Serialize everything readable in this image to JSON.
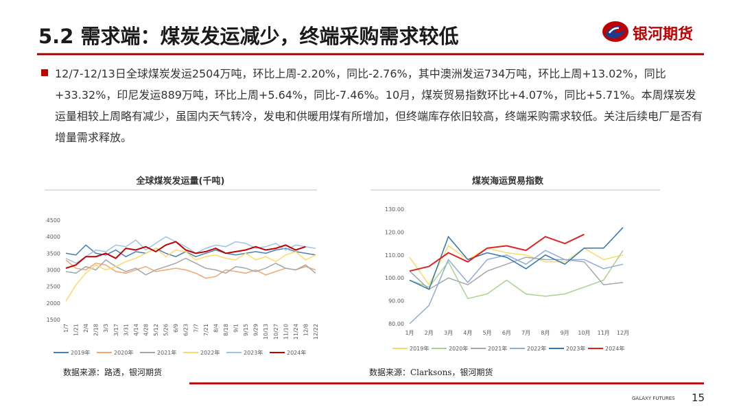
{
  "header": {
    "title": "5.2 需求端：煤炭发运减少，终端采购需求较低",
    "logo_text": "银河期货"
  },
  "bullet": {
    "text": "12/7-12/13日全球煤炭发运2504万吨，环比上周-2.20%，同比-2.76%，其中澳洲发运734万吨，环比上周+13.02%，同比+33.32%，印尼发运889万吨，环比上周+5.64%，同比-7.46%。10月，煤炭贸易指数环比+4.07%，同比+5.71%。本周煤炭发运量相较上周略有减少，虽国内天气转冷，发电和供暖用煤有所增加，但终端库存依旧较高，终端采购需求较低。关注后续电厂是否有增量需求释放。"
  },
  "chart_data": [
    {
      "type": "line",
      "title": "全球煤炭发运量(千吨)",
      "source": "数据来源：路透，银河期货",
      "categories": [
        "1/7",
        "1/21",
        "2/4",
        "2/18",
        "3/3",
        "3/17",
        "3/31",
        "4/14",
        "4/28",
        "5/12",
        "5/26",
        "6/9",
        "6/23",
        "7/7",
        "7/21",
        "8/4",
        "8/18",
        "9/1",
        "9/15",
        "9/29",
        "10/13",
        "10/27",
        "11/10",
        "11/24",
        "12/8",
        "12/22"
      ],
      "ylim": [
        1500,
        4500
      ],
      "yticks": [
        1500,
        2000,
        2500,
        3000,
        3500,
        4000,
        4500
      ],
      "series": [
        {
          "name": "2019年",
          "color": "#4a7ebb",
          "values": [
            3500,
            3450,
            3750,
            3500,
            3450,
            3600,
            3400,
            3550,
            3500,
            3650,
            3500,
            3400,
            3550,
            3400,
            3500,
            3600,
            3500,
            3450,
            3500,
            3550,
            3500,
            3600,
            3650,
            3550,
            3500,
            3450
          ]
        },
        {
          "name": "2020年",
          "color": "#f4a46c",
          "values": [
            3300,
            3050,
            3000,
            3200,
            3150,
            2950,
            2900,
            3000,
            3100,
            2950,
            3000,
            3050,
            3000,
            2900,
            2750,
            2800,
            3000,
            2950,
            2900,
            3000,
            2850,
            2950,
            3050,
            3000,
            3100,
            3000
          ]
        },
        {
          "name": "2021年",
          "color": "#a6a6a6",
          "values": [
            2950,
            2900,
            3100,
            3000,
            3300,
            3100,
            2950,
            3050,
            2850,
            3000,
            3100,
            3200,
            3350,
            3200,
            3050,
            3000,
            2900,
            3100,
            3050,
            2950,
            3050,
            3200,
            3050,
            3000,
            3150,
            2900
          ]
        },
        {
          "name": "2022年",
          "color": "#ffd966",
          "values": [
            2050,
            2550,
            2900,
            3150,
            3000,
            3100,
            3250,
            3350,
            3500,
            3650,
            3400,
            3600,
            3550,
            3300,
            3400,
            3450,
            3350,
            3300,
            3500,
            3300,
            3400,
            3250,
            3450,
            3550,
            3300,
            3450
          ]
        },
        {
          "name": "2023年",
          "color": "#9dc3e6",
          "values": [
            3350,
            3200,
            3400,
            3600,
            3550,
            3750,
            3700,
            3900,
            3600,
            3800,
            4000,
            3850,
            3700,
            3500,
            3650,
            3750,
            3700,
            3850,
            3800,
            3650,
            3700,
            3800,
            3600,
            3750,
            3700,
            3650
          ]
        },
        {
          "name": "2024年",
          "color": "#c00000",
          "values": [
            3050,
            3150,
            3400,
            3400,
            3500,
            3350,
            3650,
            3600,
            3700,
            3550,
            3750,
            3850,
            3600,
            3500,
            3550,
            3650,
            3500,
            3550,
            3600,
            3700,
            3600,
            3650,
            3750,
            3600,
            3700,
            null
          ]
        }
      ]
    },
    {
      "type": "line",
      "title": "煤炭海运贸易指数",
      "source": "数据来源：Clarksons，银河期货",
      "categories": [
        "1月",
        "2月",
        "3月",
        "4月",
        "5月",
        "6月",
        "7月",
        "8月",
        "9月",
        "10月",
        "11月",
        "12月"
      ],
      "ylim": [
        80,
        130
      ],
      "yticks": [
        {
          "value": 80,
          "label": "80.00"
        },
        {
          "value": 90,
          "label": "90.00"
        },
        {
          "value": 100,
          "label": "100.00"
        },
        {
          "value": 110,
          "label": "110.00"
        },
        {
          "value": 120,
          "label": "120.00"
        },
        {
          "value": 130,
          "label": "130.00"
        }
      ],
      "series": [
        {
          "name": "2019年",
          "color": "#ffd966",
          "values": [
            109,
            97,
            114,
            108,
            113,
            111,
            110,
            107,
            107,
            113,
            108,
            110
          ]
        },
        {
          "name": "2020年",
          "color": "#a9d18e",
          "values": [
            99,
            96,
            107,
            91,
            93,
            99,
            93,
            92,
            93,
            96,
            99,
            112
          ]
        },
        {
          "name": "2021年",
          "color": "#a6a6a6",
          "values": [
            103,
            95,
            100,
            97,
            103,
            106,
            109,
            108,
            108,
            107,
            97,
            98
          ]
        },
        {
          "name": "2022年",
          "color": "#8faadc",
          "values": [
            80,
            88,
            108,
            98,
            108,
            110,
            106,
            112,
            108,
            108,
            104,
            106
          ]
        },
        {
          "name": "2023年",
          "color": "#2e75b6",
          "values": [
            99,
            95,
            118,
            108,
            111,
            109,
            104,
            110,
            106,
            113,
            113,
            122
          ]
        },
        {
          "name": "2024年",
          "color": "#e02020",
          "values": [
            103,
            105,
            111,
            107,
            113,
            114,
            112,
            118,
            115,
            119,
            null,
            null
          ]
        }
      ]
    }
  ],
  "footer": {
    "brand": "GALAXY FUTURES",
    "page": "15"
  }
}
